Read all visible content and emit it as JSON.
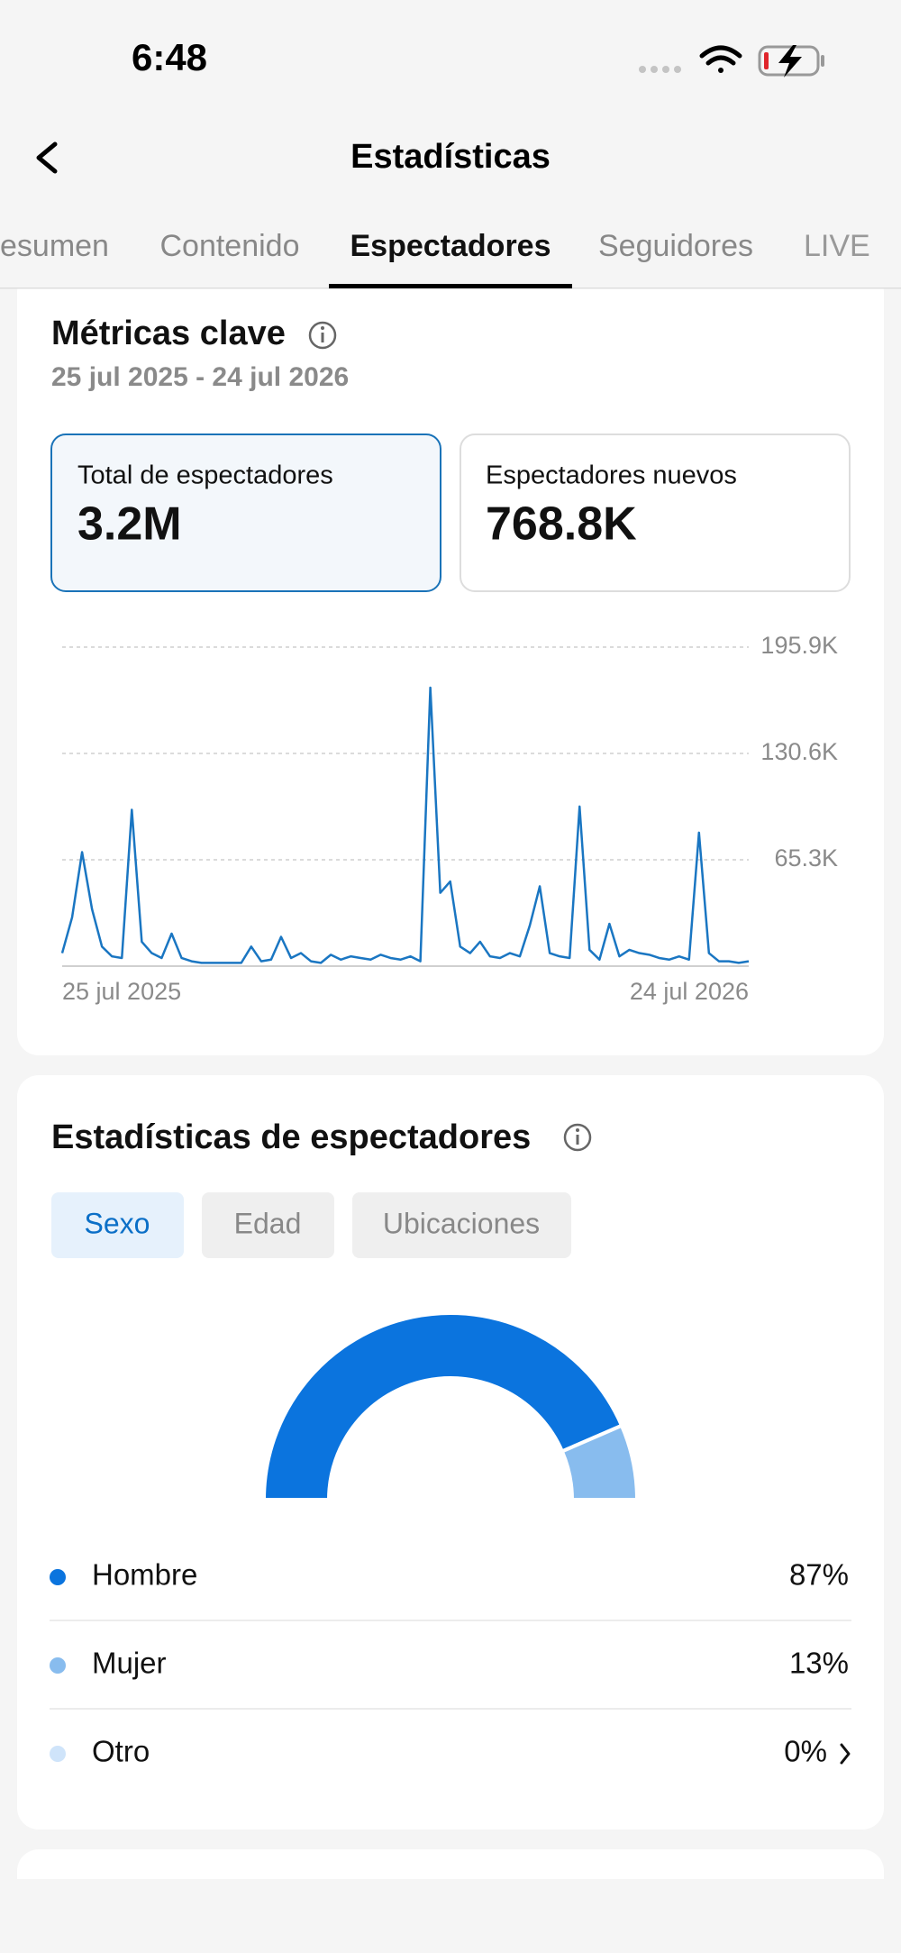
{
  "status_bar": {
    "time": "6:48"
  },
  "header": {
    "title": "Estadísticas"
  },
  "tabs": [
    "esumen",
    "Contenido",
    "Espectadores",
    "Seguidores",
    "LIVE"
  ],
  "key_metrics": {
    "title": "Métricas clave",
    "date_range": "25 jul 2025 - 24 jul 2026",
    "cards": [
      {
        "label": "Total de espectadores",
        "value": "3.2M"
      },
      {
        "label": "Espectadores nuevos",
        "value": "768.8K"
      }
    ]
  },
  "audience": {
    "title": "Estadísticas de espectadores",
    "filters": [
      "Sexo",
      "Edad",
      "Ubicaciones"
    ]
  },
  "chart_data": [
    {
      "type": "line",
      "color": "#1a76c2",
      "grid": true,
      "categories": [
        "25 jul 2025",
        null,
        null,
        null,
        null,
        null,
        null,
        null,
        null,
        null,
        null,
        null,
        null,
        null,
        null,
        null,
        null,
        null,
        null,
        null,
        null,
        null,
        null,
        null,
        null,
        null,
        null,
        null,
        null,
        null,
        null,
        null,
        null,
        null,
        null,
        null,
        null,
        null,
        null,
        null,
        null,
        null,
        null,
        null,
        null,
        null,
        null,
        null,
        null,
        null,
        null,
        null,
        null,
        null,
        null,
        null,
        null,
        null,
        null,
        null,
        null,
        null,
        null,
        null,
        null,
        null,
        null,
        null,
        null,
        "24 jul 2026"
      ],
      "values": [
        8000,
        30000,
        70000,
        35000,
        12000,
        6000,
        5000,
        96000,
        15000,
        8000,
        5000,
        20000,
        5000,
        3000,
        2000,
        2000,
        2000,
        2000,
        2000,
        12000,
        3000,
        4000,
        18000,
        5000,
        8000,
        3000,
        2000,
        7000,
        4000,
        6000,
        5000,
        4000,
        7000,
        5000,
        4000,
        6000,
        3000,
        171000,
        45000,
        52000,
        12000,
        8000,
        15000,
        6000,
        5000,
        8000,
        6000,
        25000,
        49000,
        8000,
        6000,
        5000,
        98000,
        10000,
        4000,
        26000,
        6000,
        10000,
        8000,
        7000,
        5000,
        4000,
        6000,
        4000,
        82000,
        8000,
        3000,
        3000,
        2000,
        3000
      ],
      "ylim": [
        0,
        195900
      ],
      "yticks": [
        {
          "value": 65300,
          "label": "65.3K"
        },
        {
          "value": 130600,
          "label": "130.6K"
        },
        {
          "value": 195900,
          "label": "195.9K"
        }
      ]
    },
    {
      "type": "pie",
      "categories": [
        "Hombre",
        "Mujer",
        "Otro"
      ],
      "values": [
        87,
        13,
        0
      ],
      "value_labels": [
        "87%",
        "13%",
        "0%"
      ],
      "colors": [
        "#0b74de",
        "#88bcee",
        "#cfe4fa"
      ]
    }
  ]
}
